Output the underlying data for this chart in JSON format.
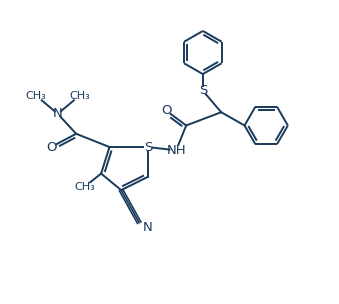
{
  "background_color": "#ffffff",
  "line_color": "#1a3a5c",
  "line_width": 1.4,
  "font_size": 8.5,
  "figsize": [
    3.39,
    3.04
  ],
  "dpi": 100,
  "xlim": [
    0,
    10
  ],
  "ylim": [
    0,
    9
  ]
}
